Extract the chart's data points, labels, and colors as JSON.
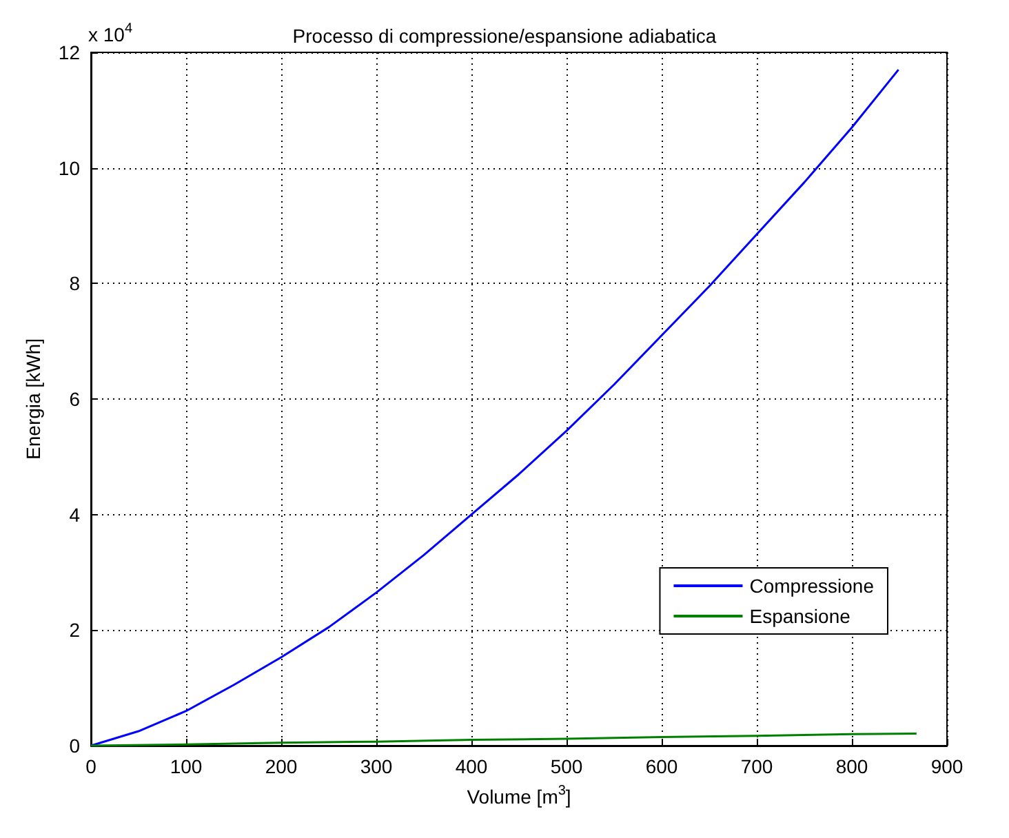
{
  "chart_data": {
    "type": "line",
    "title": "Processo di compressione/espansione adiabatica",
    "xlabel": "Volume [m$^{3}$]",
    "ylabel": "Energia [kWh]",
    "annotations": [
      "x 10$^{4}$"
    ],
    "xlim": [
      0,
      900
    ],
    "xticks": [
      0,
      100,
      200,
      300,
      400,
      500,
      600,
      700,
      800,
      900
    ],
    "ylim": [
      0,
      12
    ],
    "yticks": [
      0,
      2,
      4,
      6,
      8,
      10,
      12
    ],
    "grid": true,
    "legend": "bottom right",
    "marker": "none",
    "line_style": "solid",
    "series": [
      {
        "name": "Compressione",
        "color": "#0000ff",
        "x": [
          0,
          50,
          100,
          150,
          200,
          250,
          300,
          350,
          400,
          450,
          500,
          550,
          600,
          650,
          700,
          750,
          800,
          849
        ],
        "values": [
          0,
          0.25,
          0.6,
          1.05,
          1.53,
          2.05,
          2.65,
          3.3,
          4.0,
          4.7,
          5.45,
          6.25,
          7.1,
          7.95,
          8.85,
          9.75,
          10.7,
          11.7
        ]
      },
      {
        "name": "Espansione",
        "color": "#008000",
        "x": [
          0,
          100,
          200,
          300,
          400,
          500,
          600,
          700,
          800,
          868
        ],
        "values": [
          0,
          0.02,
          0.05,
          0.07,
          0.1,
          0.12,
          0.15,
          0.17,
          0.2,
          0.21
        ]
      }
    ]
  }
}
